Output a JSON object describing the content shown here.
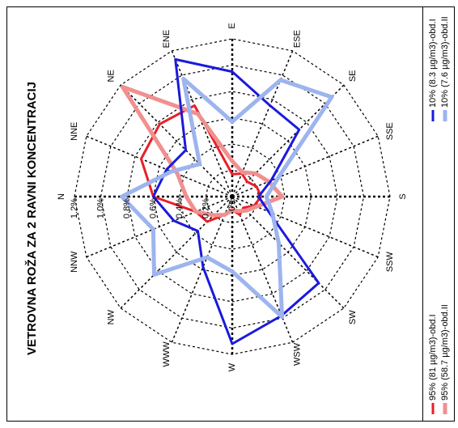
{
  "chart_data": {
    "type": "radar",
    "title": "VETROVNA ROŽA ZA 2 RAVNI KONCENTRACIJ",
    "categories": [
      "N",
      "NNE",
      "NE",
      "ENE",
      "E",
      "ESE",
      "SE",
      "SSE",
      "S",
      "SSW",
      "SW",
      "WSW",
      "W",
      "WWW",
      "NW",
      "NNW"
    ],
    "rlim": [
      0,
      1.2
    ],
    "rticks": [
      {
        "value": 0,
        "label": "0%"
      },
      {
        "value": 0.2,
        "label": "0.2%"
      },
      {
        "value": 0.4,
        "label": "0.4%"
      },
      {
        "value": 0.6,
        "label": "0.6%"
      },
      {
        "value": 0.8,
        "label": "0.8%"
      },
      {
        "value": 1.0,
        "label": "1.0%"
      },
      {
        "value": 1.2,
        "label": "1.2%"
      }
    ],
    "grid": true,
    "series": [
      {
        "name": "95% (81 µg/m3)-obd.I",
        "color": "#e8202a",
        "width": 3,
        "values": [
          0.6,
          0.75,
          0.78,
          0.75,
          0.17,
          0.19,
          0.16,
          0.2,
          0.22,
          0.18,
          0.12,
          0.15,
          0.1,
          0.15,
          0.27,
          0.3
        ]
      },
      {
        "name": "95% (58.7 µg/m3)-obd.II",
        "color": "#f09090",
        "width": 5,
        "values": [
          0.35,
          0.45,
          1.18,
          0.68,
          0.27,
          0.2,
          0.25,
          0.3,
          0.38,
          0.2,
          0.15,
          0.12,
          0.1,
          0.15,
          0.2,
          0.3
        ]
      },
      {
        "name": "10% (8.3 µg/m3)-obd.I",
        "color": "#1a1adc",
        "width": 3,
        "values": [
          0.6,
          0.54,
          0.5,
          1.13,
          0.95,
          0.75,
          0.72,
          0.32,
          0.2,
          0.3,
          0.93,
          0.98,
          1.12,
          0.58,
          0.37,
          0.48
        ]
      },
      {
        "name": "10% (7.6 µg/m3)-obd.II",
        "color": "#9db4ee",
        "width": 5,
        "values": [
          0.84,
          0.5,
          0.35,
          0.97,
          0.57,
          0.96,
          1.07,
          0.38,
          0.26,
          0.33,
          0.5,
          0.99,
          0.57,
          0.5,
          0.84,
          0.65
        ]
      }
    ]
  }
}
